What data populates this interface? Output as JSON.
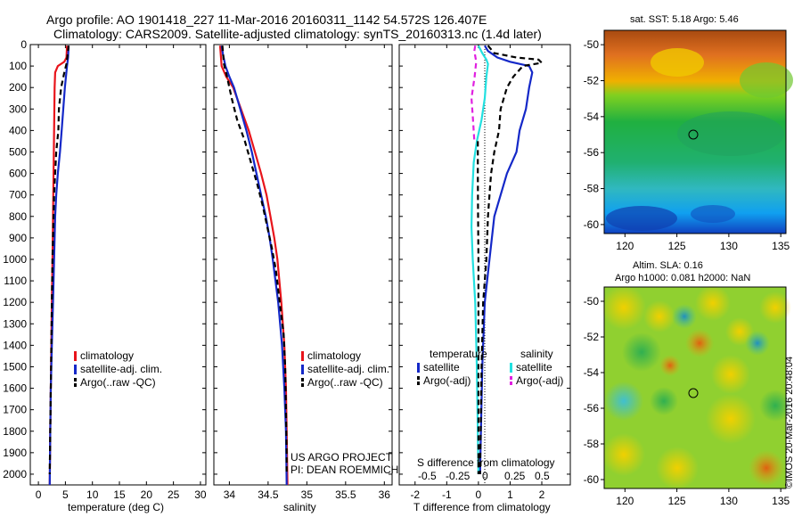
{
  "header": {
    "line1": "Argo profile: AO 1901418_227 11-Mar-2016 20160311_1142 54.572S 126.407E",
    "line2": "Climatology: CARS2009. Satellite-adjusted climatology: synTS_20160313.nc (1.4d later)"
  },
  "colors": {
    "climatology": "#e8141b",
    "satellite": "#1428c8",
    "argo": "#000000",
    "salinity_satellite": "#22e0e0",
    "salinity_argo": "#e020e0"
  },
  "chart_data": [
    {
      "type": "line",
      "id": "temperature",
      "xlabel": "temperature (deg C)",
      "ylabel": "",
      "xlim": [
        -1.5,
        31
      ],
      "ylim": [
        2050,
        0
      ],
      "xticks": [
        0,
        5,
        10,
        15,
        20,
        25,
        30
      ],
      "yticks": [
        0,
        100,
        200,
        300,
        400,
        500,
        600,
        700,
        800,
        900,
        1000,
        1100,
        1200,
        1300,
        1400,
        1500,
        1600,
        1700,
        1800,
        1900,
        2000
      ],
      "legend": [
        "climatology",
        "satellite-adj. clim.",
        "Argo(..raw -QC)"
      ],
      "series": [
        {
          "name": "climatology",
          "color_key": "climatology",
          "dash": false,
          "points": [
            [
              5.3,
              5
            ],
            [
              5.2,
              60
            ],
            [
              4.8,
              80
            ],
            [
              3.6,
              100
            ],
            [
              3.1,
              130
            ],
            [
              3.0,
              200
            ],
            [
              2.9,
              400
            ],
            [
              2.8,
              600
            ],
            [
              2.7,
              800
            ],
            [
              2.6,
              1000
            ],
            [
              2.5,
              1200
            ],
            [
              2.4,
              1400
            ],
            [
              2.3,
              1600
            ],
            [
              2.2,
              1800
            ],
            [
              2.1,
              2050
            ]
          ]
        },
        {
          "name": "satellite-adj. clim.",
          "color_key": "satellite",
          "dash": false,
          "points": [
            [
              5.6,
              5
            ],
            [
              5.5,
              60
            ],
            [
              5.3,
              100
            ],
            [
              4.9,
              200
            ],
            [
              4.6,
              300
            ],
            [
              4.3,
              400
            ],
            [
              4.0,
              500
            ],
            [
              3.6,
              600
            ],
            [
              3.3,
              700
            ],
            [
              3.1,
              800
            ],
            [
              2.9,
              1000
            ],
            [
              2.7,
              1200
            ],
            [
              2.5,
              1400
            ],
            [
              2.3,
              1600
            ],
            [
              2.2,
              1800
            ],
            [
              2.1,
              2050
            ]
          ]
        },
        {
          "name": "Argo(..raw -QC)",
          "color_key": "argo",
          "dash": true,
          "points": [
            [
              5.6,
              5
            ],
            [
              5.4,
              50
            ],
            [
              5.2,
              90
            ],
            [
              4.8,
              130
            ],
            [
              4.2,
              200
            ],
            [
              3.8,
              300
            ],
            [
              3.7,
              400
            ],
            [
              3.3,
              500
            ],
            [
              3.1,
              600
            ],
            [
              2.9,
              700
            ],
            [
              2.8,
              800
            ],
            [
              2.6,
              1000
            ],
            [
              2.5,
              1200
            ],
            [
              2.4,
              1400
            ],
            [
              2.3,
              1600
            ],
            [
              2.2,
              1800
            ],
            [
              2.1,
              2000
            ]
          ]
        }
      ]
    },
    {
      "type": "line",
      "id": "salinity",
      "xlabel": "salinity",
      "ylabel": "",
      "xlim": [
        33.8,
        36.1
      ],
      "ylim": [
        2050,
        0
      ],
      "xticks": [
        34,
        34.5,
        35,
        35.5,
        36
      ],
      "legend": [
        "climatology",
        "satellite-adj. clim.",
        "Argo(..raw -QC)"
      ],
      "series": [
        {
          "name": "climatology",
          "color_key": "climatology",
          "dash": false,
          "points": [
            [
              33.88,
              5
            ],
            [
              33.9,
              100
            ],
            [
              33.96,
              150
            ],
            [
              34.05,
              200
            ],
            [
              34.15,
              300
            ],
            [
              34.25,
              400
            ],
            [
              34.33,
              500
            ],
            [
              34.41,
              600
            ],
            [
              34.48,
              700
            ],
            [
              34.53,
              800
            ],
            [
              34.58,
              900
            ],
            [
              34.62,
              1000
            ],
            [
              34.67,
              1200
            ],
            [
              34.71,
              1400
            ],
            [
              34.73,
              1600
            ],
            [
              34.74,
              1800
            ],
            [
              34.75,
              2050
            ]
          ]
        },
        {
          "name": "satellite-adj. clim.",
          "color_key": "satellite",
          "dash": false,
          "points": [
            [
              33.9,
              5
            ],
            [
              33.92,
              50
            ],
            [
              33.95,
              100
            ],
            [
              34.0,
              150
            ],
            [
              34.06,
              200
            ],
            [
              34.14,
              300
            ],
            [
              34.22,
              400
            ],
            [
              34.29,
              500
            ],
            [
              34.35,
              600
            ],
            [
              34.41,
              700
            ],
            [
              34.47,
              800
            ],
            [
              34.52,
              900
            ],
            [
              34.56,
              1000
            ],
            [
              34.63,
              1200
            ],
            [
              34.68,
              1400
            ],
            [
              34.71,
              1600
            ],
            [
              34.73,
              1800
            ],
            [
              34.74,
              2050
            ]
          ]
        },
        {
          "name": "Argo(..raw -QC)",
          "color_key": "argo",
          "dash": true,
          "points": [
            [
              33.91,
              5
            ],
            [
              33.93,
              90
            ],
            [
              33.97,
              150
            ],
            [
              34.03,
              250
            ],
            [
              34.1,
              350
            ],
            [
              34.2,
              450
            ],
            [
              34.28,
              550
            ],
            [
              34.36,
              650
            ],
            [
              34.43,
              750
            ],
            [
              34.49,
              850
            ],
            [
              34.55,
              950
            ],
            [
              34.6,
              1050
            ],
            [
              34.65,
              1200
            ],
            [
              34.7,
              1350
            ],
            [
              34.72,
              1500
            ],
            [
              34.73,
              1700
            ],
            [
              34.74,
              1900
            ],
            [
              34.74,
              2000
            ]
          ]
        }
      ],
      "notes": [
        "US ARGO PROJECT",
        "PI: DEAN ROEMMICH"
      ]
    },
    {
      "type": "line",
      "id": "difference",
      "xlabel": "T difference from climatology",
      "xlabel_top": "S difference from climatology",
      "xlim": [
        -2.5,
        2.9
      ],
      "ylim": [
        2050,
        0
      ],
      "xticks": [
        -2,
        -1,
        0,
        1,
        2
      ],
      "s_ticks": [
        "-0.5",
        "-0.25",
        "0",
        "0.25",
        "0.5"
      ],
      "legend_headers": [
        "temperature",
        "salinity"
      ],
      "legend_temperature": [
        "satellite",
        "Argo(-adj)"
      ],
      "legend_salinity": [
        "satellite",
        "Argo(-adj)"
      ],
      "series": [
        {
          "name": "temperature satellite",
          "color_key": "satellite",
          "dash": false,
          "points": [
            [
              0.2,
              5
            ],
            [
              0.3,
              30
            ],
            [
              0.6,
              60
            ],
            [
              1.0,
              80
            ],
            [
              1.6,
              100
            ],
            [
              1.7,
              130
            ],
            [
              1.6,
              200
            ],
            [
              1.5,
              300
            ],
            [
              1.3,
              400
            ],
            [
              1.2,
              500
            ],
            [
              0.9,
              600
            ],
            [
              0.7,
              700
            ],
            [
              0.5,
              800
            ],
            [
              0.35,
              1000
            ],
            [
              0.2,
              1200
            ],
            [
              0.12,
              1500
            ],
            [
              0.08,
              1800
            ],
            [
              0.05,
              2000
            ]
          ]
        },
        {
          "name": "temperature Argo(-adj)",
          "color_key": "argo",
          "dash": true,
          "points": [
            [
              0.3,
              5
            ],
            [
              0.5,
              40
            ],
            [
              1.2,
              60
            ],
            [
              1.9,
              70
            ],
            [
              2.0,
              85
            ],
            [
              1.4,
              100
            ],
            [
              1.1,
              150
            ],
            [
              0.9,
              200
            ],
            [
              0.7,
              300
            ],
            [
              0.65,
              400
            ],
            [
              0.5,
              500
            ],
            [
              0.4,
              600
            ],
            [
              0.35,
              700
            ],
            [
              0.3,
              800
            ],
            [
              0.25,
              1000
            ],
            [
              0.15,
              1200
            ],
            [
              0.1,
              1500
            ],
            [
              0.07,
              1800
            ],
            [
              0.05,
              2000
            ]
          ]
        },
        {
          "name": "salinity satellite",
          "color_key": "salinity_satellite",
          "dash": false,
          "points": [
            [
              0.0,
              5
            ],
            [
              0.12,
              40
            ],
            [
              0.25,
              70
            ],
            [
              0.3,
              90
            ],
            [
              0.25,
              150
            ],
            [
              0.2,
              250
            ],
            [
              0.1,
              350
            ],
            [
              -0.05,
              450
            ],
            [
              -0.15,
              550
            ],
            [
              -0.2,
              700
            ],
            [
              -0.22,
              850
            ],
            [
              -0.18,
              1000
            ],
            [
              -0.1,
              1200
            ],
            [
              -0.05,
              1500
            ],
            [
              -0.02,
              1800
            ],
            [
              0.0,
              2000
            ]
          ]
        },
        {
          "name": "salinity Argo(-adj)",
          "color_key": "salinity_argo",
          "dash": true,
          "points": [
            [
              -0.1,
              5
            ],
            [
              -0.13,
              30
            ],
            [
              -0.07,
              80
            ],
            [
              -0.12,
              150
            ],
            [
              -0.22,
              250
            ],
            [
              -0.17,
              350
            ],
            [
              -0.13,
              450
            ]
          ]
        },
        {
          "name": "salinity Argo(-adj) lower",
          "color_key": "argo",
          "dash": true,
          "points": [
            [
              -0.02,
              450
            ],
            [
              -0.02,
              600
            ],
            [
              -0.01,
              800
            ],
            [
              0.0,
              1000
            ],
            [
              0.0,
              1400
            ],
            [
              0.0,
              2000
            ]
          ]
        }
      ]
    }
  ],
  "maps": [
    {
      "id": "sst",
      "title": "sat. SST: 5.18  Argo: 5.46",
      "xticks": [
        "120",
        "125",
        "130",
        "135"
      ],
      "yticks": [
        "-50",
        "-52",
        "-54",
        "-56",
        "-58",
        "-60"
      ],
      "marker": {
        "lon": 126.4,
        "lat": -54.57
      }
    },
    {
      "id": "sla",
      "title1": "Altim. SLA: 0.16",
      "title2": "Argo h1000: 0.081 h2000: NaN",
      "xticks": [
        "120",
        "125",
        "130",
        "135"
      ],
      "yticks": [
        "-50",
        "-52",
        "-54",
        "-56",
        "-58",
        "-60"
      ],
      "marker": {
        "lon": 126.4,
        "lat": -54.57
      }
    }
  ],
  "copyright": "©IMOS 20-Mar-2016 20:48:04"
}
